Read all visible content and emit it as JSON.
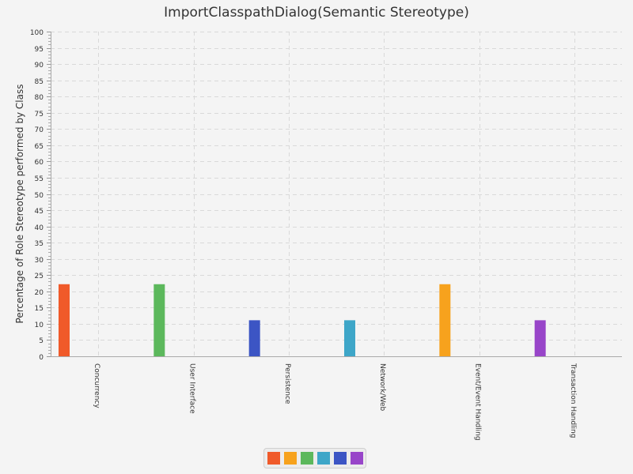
{
  "chart_data": {
    "type": "bar",
    "title": "ImportClasspathDialog(Semantic Stereotype)",
    "ylabel": "Percentage of Role Stereotype performed by Class",
    "xlabel": "",
    "ylim": [
      0,
      100
    ],
    "ytick_step": 5,
    "grid": true,
    "legend_placement": "bottom-center",
    "categories": [
      "Concurrency",
      "User Interface",
      "Persistence",
      "Network/Web",
      "Event/Event Handling",
      "Transaction Handling"
    ],
    "series": [
      {
        "color": "#f05a2a",
        "values": [
          22.2,
          0,
          0,
          0,
          0,
          0
        ]
      },
      {
        "color": "#f7a21d",
        "values": [
          0,
          0,
          0,
          0,
          22.2,
          0
        ]
      },
      {
        "color": "#5cb85c",
        "values": [
          0,
          22.2,
          0,
          0,
          0,
          0
        ]
      },
      {
        "color": "#3ea6c8",
        "values": [
          0,
          0,
          0,
          11.1,
          0,
          0
        ]
      },
      {
        "color": "#3c55c4",
        "values": [
          0,
          0,
          11.1,
          0,
          0,
          0
        ]
      },
      {
        "color": "#9845c9",
        "values": [
          0,
          0,
          0,
          0,
          0,
          11.1
        ]
      }
    ]
  }
}
